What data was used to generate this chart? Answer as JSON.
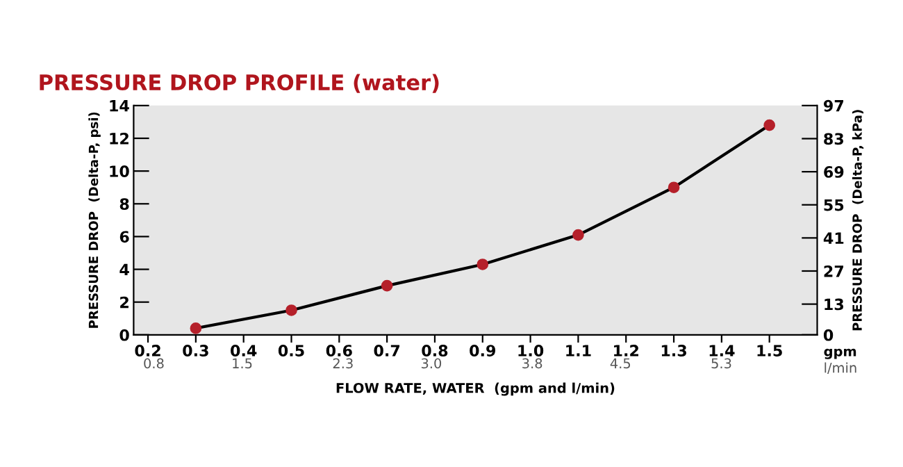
{
  "chart_data": {
    "type": "line",
    "title": "PRESSURE DROP PROFILE (water)",
    "xlabel": "FLOW RATE, WATER  (gpm and l/min)",
    "ylabel": "PRESSURE DROP  (Delta-P, psi)",
    "y2label": "PRESSURE DROP  (Delta-P, kPa)",
    "x": [
      0.3,
      0.5,
      0.7,
      0.9,
      1.1,
      1.3,
      1.5
    ],
    "series": [
      {
        "color": "#b5202a",
        "values": [
          0.4,
          1.5,
          3.0,
          4.3,
          6.1,
          9.0,
          12.8
        ]
      }
    ],
    "xlim": [
      0.17,
      1.6
    ],
    "xticks": [
      0.2,
      0.3,
      0.4,
      0.5,
      0.6,
      0.7,
      0.8,
      0.9,
      {
        "value": 1,
        "label": "1.0"
      },
      1.1,
      1.2,
      1.3,
      1.4,
      1.5
    ],
    "x2lim": [
      0.64,
      6.06
    ],
    "x2ticks": [
      0.8,
      1.5,
      2.3,
      {
        "value": 3,
        "label": "3.0"
      },
      3.8,
      4.5,
      5.3
    ],
    "ylim": [
      0,
      14
    ],
    "yticks": [
      0,
      2,
      4,
      6,
      8,
      10,
      12,
      14
    ],
    "y2lim": [
      0,
      97
    ],
    "y2ticks": [
      0,
      13,
      27,
      41,
      55,
      69,
      83,
      97
    ],
    "annotations": [
      "gpm",
      "l/min"
    ],
    "marker": "circle",
    "line_style": "solid",
    "grid": false,
    "legend": false
  }
}
